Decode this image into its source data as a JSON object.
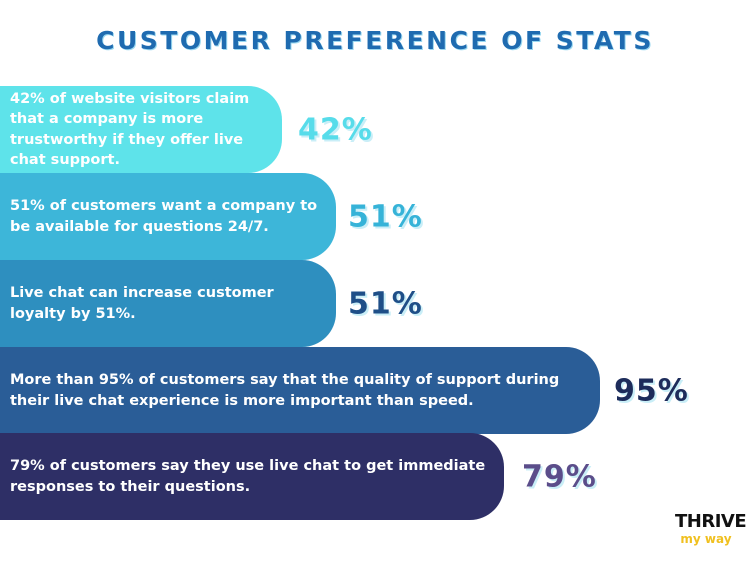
{
  "title": "CUSTOMER PREFERENCE OF STATS",
  "chart_data": {
    "type": "bar",
    "orientation": "horizontal",
    "title": "CUSTOMER PREFERENCE OF STATS",
    "categories": [
      "42% of website visitors claim that a company is more trustworthy if they offer live chat support.",
      "51% of customers want a company to be available for questions 24/7.",
      "Live chat can increase customer loyalty by 51%.",
      "More than 95% of customers say that the quality of support during their live chat experience is more important than speed.",
      "79% of customers say they use live chat to get immediate responses to their questions."
    ],
    "values": [
      42,
      51,
      51,
      95,
      79
    ],
    "value_labels": [
      "42%",
      "51%",
      "51%",
      "95%",
      "79%"
    ],
    "bar_colors": [
      "#5ee3ea",
      "#3db6d9",
      "#2e8fbf",
      "#2a5d97",
      "#2e2f66"
    ],
    "label_colors": [
      "#57dcea",
      "#36b3d8",
      "#1f4f88",
      "#1d2c5b",
      "#5b4d8a"
    ],
    "xlim": [
      0,
      100
    ],
    "grid": false,
    "legend": "none"
  },
  "logo": {
    "line1": "THRIVE",
    "line2": "my way"
  }
}
